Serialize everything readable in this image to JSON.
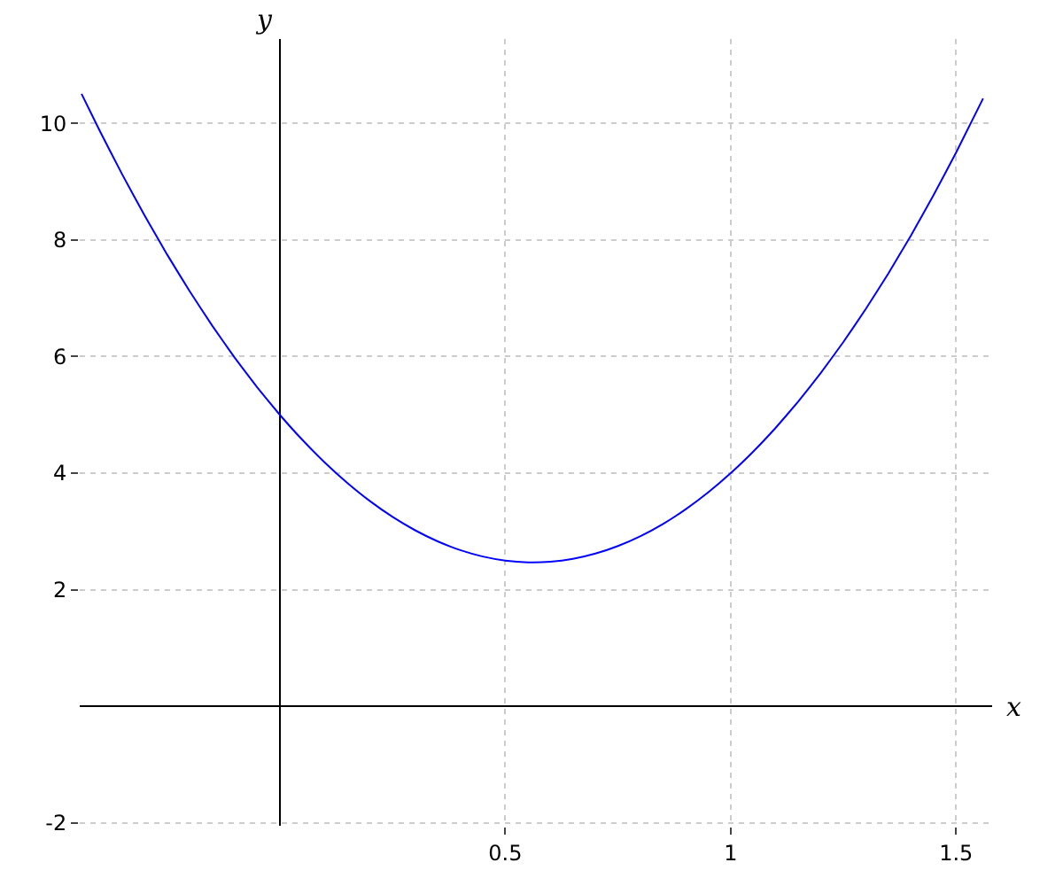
{
  "chart_data": {
    "type": "line",
    "xlabel": "x",
    "ylabel": "y",
    "x": [
      -0.44,
      -0.4,
      -0.35,
      -0.3,
      -0.25,
      -0.2,
      -0.15,
      -0.1,
      -0.05,
      0,
      0.05,
      0.1,
      0.15,
      0.2,
      0.25,
      0.3,
      0.35,
      0.4,
      0.45,
      0.5,
      0.55,
      0.6,
      0.65,
      0.7,
      0.75,
      0.8,
      0.85,
      0.9,
      0.95,
      1.0,
      1.05,
      1.1,
      1.15,
      1.2,
      1.25,
      1.3,
      1.35,
      1.4,
      1.45,
      1.5,
      1.56
    ],
    "series": [
      {
        "color": "#0000ff",
        "values": [
          10.51,
          9.88,
          9.13,
          8.42,
          7.75,
          7.12,
          6.53,
          5.98,
          5.47,
          5,
          4.57,
          4.18,
          3.83,
          3.52,
          3.25,
          3.02,
          2.83,
          2.68,
          2.57,
          2.5,
          2.47,
          2.48,
          2.53,
          2.62,
          2.75,
          2.92,
          3.13,
          3.38,
          3.67,
          4,
          4.37,
          4.78,
          5.23,
          5.72,
          6.25,
          6.82,
          7.43,
          8.08,
          8.77,
          9.5,
          10.43
        ]
      }
    ],
    "xlim": [
      -0.444,
      1.58
    ],
    "ylim": [
      -2.05,
      11.45
    ],
    "xticks": [
      0.5,
      1,
      1.5
    ],
    "yticks": [
      -2,
      2,
      4,
      6,
      8,
      10
    ],
    "grid": true,
    "line_style": "solid",
    "marker": "none"
  }
}
